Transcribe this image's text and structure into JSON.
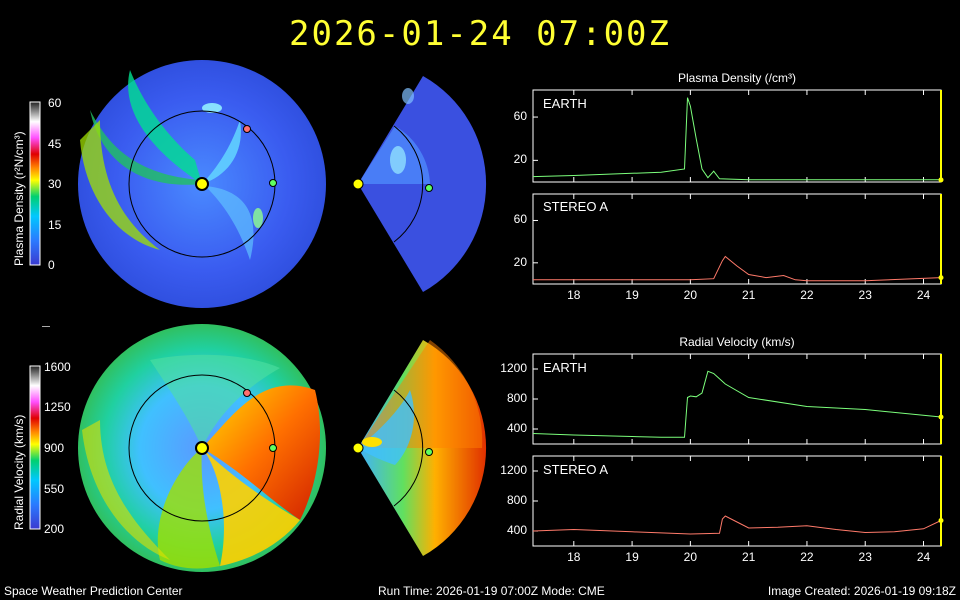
{
  "header": {
    "datetime": "2026-01-24  07:00Z"
  },
  "footer": {
    "left": "Space Weather Prediction Center",
    "middle": "Run Time: 2026-01-19 07:00Z  Mode: CME",
    "right": "Image Created: 2026-01-19 09:18Z"
  },
  "colorbars": {
    "density": {
      "title": "Plasma Density (r²N/cm³)",
      "ticks": [
        "60",
        "45",
        "30",
        "15",
        "0"
      ]
    },
    "velocity": {
      "title": "Radial Velocity (km/s)",
      "ticks": [
        "1600",
        "1250",
        "900",
        "550",
        "200"
      ]
    }
  },
  "panels": {
    "density_title": "Plasma Density (/cm³)",
    "velocity_title": "Radial Velocity (km/s)",
    "earth_label": "EARTH",
    "stereo_label": "STEREO A"
  },
  "colors": {
    "accent_title": "#ffff33",
    "earth_line": "#7cff7c",
    "stereo_line": "#ff7a6a",
    "axis": "#ffffff",
    "marker": "#ffff00"
  },
  "chart_data": [
    {
      "type": "line",
      "title": "Plasma Density (/cm³)",
      "series": [
        {
          "name": "EARTH",
          "x": [
            17.3,
            18,
            19,
            19.5,
            19.9,
            19.95,
            20.0,
            20.05,
            20.1,
            20.2,
            20.3,
            20.4,
            20.5,
            21,
            22,
            23,
            24.3
          ],
          "values": [
            5,
            6,
            8,
            9,
            12,
            78,
            70,
            55,
            40,
            12,
            4,
            10,
            3,
            2,
            2,
            2,
            2
          ]
        }
      ],
      "ylim": [
        0,
        85
      ],
      "yticks": [
        20,
        60
      ],
      "xlim": [
        17.3,
        24.3
      ],
      "xticks": [
        18,
        19,
        20,
        21,
        22,
        23,
        24
      ]
    },
    {
      "type": "line",
      "series": [
        {
          "name": "STEREO A",
          "x": [
            17.3,
            18,
            19,
            20,
            20.4,
            20.55,
            20.6,
            20.8,
            21.0,
            21.3,
            21.6,
            21.8,
            22,
            23,
            24.3
          ],
          "values": [
            4,
            4,
            4,
            4,
            5,
            22,
            26,
            17,
            9,
            6,
            8,
            4,
            3,
            3,
            6
          ]
        }
      ],
      "ylim": [
        0,
        85
      ],
      "yticks": [
        20,
        60
      ],
      "xlim": [
        17.3,
        24.3
      ],
      "xticks": [
        18,
        19,
        20,
        21,
        22,
        23,
        24
      ]
    },
    {
      "type": "line",
      "title": "Radial Velocity (km/s)",
      "series": [
        {
          "name": "EARTH",
          "x": [
            17.3,
            18,
            19,
            19.5,
            19.9,
            19.95,
            20.0,
            20.1,
            20.2,
            20.3,
            20.4,
            20.6,
            21,
            22,
            23,
            24.3
          ],
          "values": [
            340,
            320,
            300,
            290,
            290,
            820,
            840,
            830,
            880,
            1170,
            1140,
            1000,
            820,
            700,
            660,
            560
          ]
        }
      ],
      "ylim": [
        200,
        1400
      ],
      "yticks": [
        400,
        800,
        1200
      ],
      "xlim": [
        17.3,
        24.3
      ],
      "xticks": [
        18,
        19,
        20,
        21,
        22,
        23,
        24
      ]
    },
    {
      "type": "line",
      "series": [
        {
          "name": "STEREO A",
          "x": [
            17.3,
            18,
            19,
            20,
            20.5,
            20.55,
            20.6,
            20.8,
            21,
            21.5,
            22,
            22.5,
            23,
            23.5,
            24,
            24.3
          ],
          "values": [
            400,
            420,
            390,
            360,
            370,
            560,
            600,
            520,
            440,
            450,
            470,
            420,
            380,
            390,
            430,
            540
          ]
        }
      ],
      "ylim": [
        200,
        1400
      ],
      "yticks": [
        400,
        800,
        1200
      ],
      "xlim": [
        17.3,
        24.3
      ],
      "xticks": [
        18,
        19,
        20,
        21,
        22,
        23,
        24
      ]
    }
  ]
}
